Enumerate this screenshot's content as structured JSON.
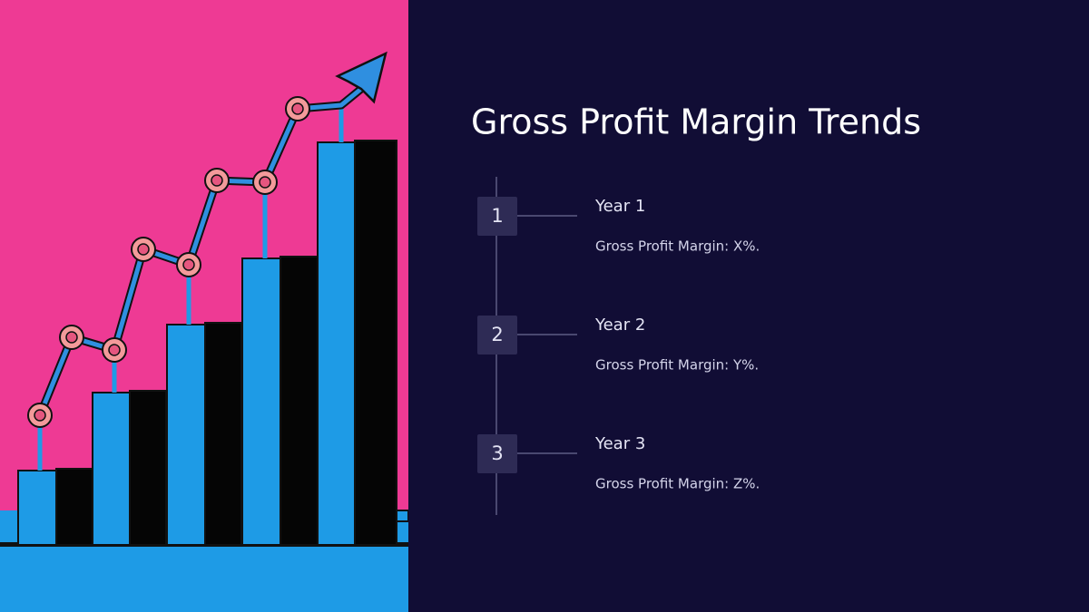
{
  "header": {
    "title": "Gross Profit Margin Trends"
  },
  "timeline": [
    {
      "number": "1",
      "heading": "Year 1",
      "text": "Gross Profit Margin: X%."
    },
    {
      "number": "2",
      "heading": "Year 2",
      "text": "Gross Profit Margin: Y%."
    },
    {
      "number": "3",
      "heading": "Year 3",
      "text": "Gross Profit Margin: Z%."
    }
  ]
}
